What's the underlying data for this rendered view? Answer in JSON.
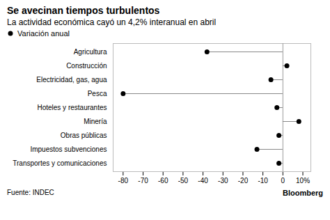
{
  "chart_data": {
    "type": "lollipop",
    "orientation": "horizontal",
    "title": "Se avecinan tiempos turbulentos",
    "subtitle": "La actividad económica cayó un 4,2% interanual en abril",
    "caption": "Fuente: INDEC",
    "annotations": [
      "Bloomberg"
    ],
    "categories": [
      "Agricultura",
      "Construcción",
      "Electricidad, gas, agua",
      "Pesca",
      "Hoteles y restaurantes",
      "Minería",
      "Obras públicas",
      "Impuestos subvenciones",
      "Transportes y comunicaciones"
    ],
    "series": [
      {
        "name": "Variación anual",
        "values": [
          -38,
          2,
          -6,
          -80,
          -3,
          8,
          -2,
          -13,
          -2
        ]
      }
    ],
    "legend": "top-left",
    "marker": "circle",
    "xlim": [
      -85,
      14
    ],
    "xticks": [
      -80,
      -70,
      -60,
      -50,
      -40,
      -30,
      -20,
      -10,
      0,
      {
        "value": 10,
        "label": "10%"
      }
    ],
    "grid": false
  }
}
